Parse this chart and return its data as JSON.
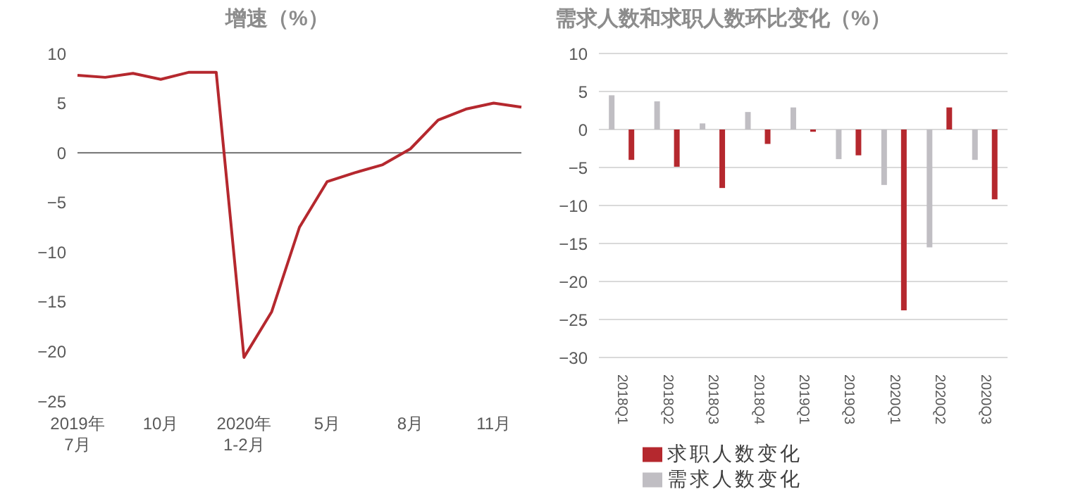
{
  "chart_data": [
    {
      "type": "line",
      "title": "增速（%）",
      "categories": [
        "2019年\n7月",
        null,
        null,
        "10月",
        null,
        null,
        "2020年\n1-2月",
        null,
        null,
        "5月",
        null,
        null,
        "8月",
        null,
        null,
        "11月",
        null
      ],
      "series": [
        {
          "color": "#b5282e",
          "values": [
            7.8,
            7.6,
            8.0,
            7.4,
            8.1,
            8.1,
            -20.6,
            -16.0,
            -7.5,
            -2.9,
            -2.0,
            -1.2,
            0.4,
            3.3,
            4.4,
            5.0,
            4.6
          ]
        }
      ],
      "ylim": [
        -25,
        10
      ],
      "yticks": [
        -25,
        -20,
        -15,
        -10,
        -5,
        0,
        5,
        10
      ],
      "grid": false,
      "ref_lines": [
        {
          "axis": "y",
          "value": 0,
          "color": "#7f7f7f"
        }
      ]
    },
    {
      "type": "bar",
      "title": "需求人数和求职人数环比变化（%）",
      "categories": [
        "2018Q1",
        "2018Q2",
        "2018Q3",
        "2018Q4",
        "2019Q1",
        "2019Q3",
        "2020Q1",
        "2020Q2",
        "2020Q3"
      ],
      "series": [
        {
          "name": "需求人数变化",
          "color": "#c0bec3",
          "values": [
            4.5,
            3.7,
            0.8,
            2.3,
            2.9,
            -3.9,
            -7.3,
            -15.5,
            -4.0
          ]
        },
        {
          "name": "求职人数变化",
          "color": "#b5282e",
          "values": [
            -4.0,
            -4.9,
            -7.7,
            -1.9,
            -0.3,
            -3.4,
            -23.8,
            2.9,
            -9.2
          ]
        }
      ],
      "ylim": [
        -30,
        10
      ],
      "yticks": [
        -30,
        -25,
        -20,
        -15,
        -10,
        -5,
        0,
        5,
        10
      ],
      "grid": "y",
      "legend": "bottom"
    }
  ]
}
